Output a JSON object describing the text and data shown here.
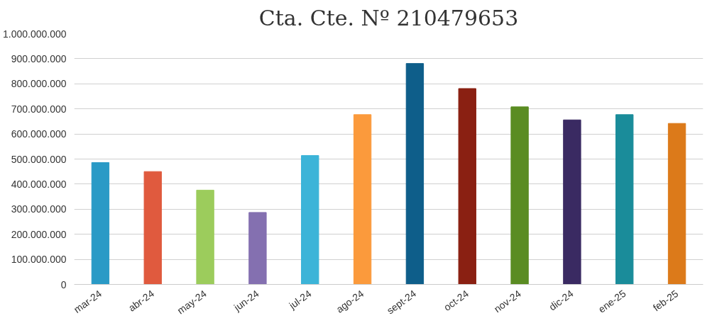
{
  "chart_data": {
    "type": "bar",
    "title": "Cta. Cte. Nº 210479653",
    "categories": [
      "mar-24",
      "abr-24",
      "may-24",
      "jun-24",
      "jul-24",
      "ago-24",
      "sept-24",
      "oct-24",
      "nov-24",
      "dic-24",
      "ene-25",
      "feb-25"
    ],
    "values": [
      486000000,
      450000000,
      376000000,
      287000000,
      514000000,
      677000000,
      881000000,
      781000000,
      708000000,
      656000000,
      677000000,
      642000000
    ],
    "colors": [
      "#2a9ac6",
      "#e05a3e",
      "#9ccc5c",
      "#8470b0",
      "#3cb4d8",
      "#fb9a3c",
      "#0e5e8a",
      "#8a2012",
      "#5a8c22",
      "#3a2a62",
      "#1a8c9a",
      "#dc7a1a"
    ],
    "ylim": [
      0,
      1000000000
    ],
    "yticks": [
      {
        "value": 0,
        "label": "0"
      },
      {
        "value": 100000000,
        "label": "100.000.000"
      },
      {
        "value": 200000000,
        "label": "200.000.000"
      },
      {
        "value": 300000000,
        "label": "300.000.000"
      },
      {
        "value": 400000000,
        "label": "400.000.000"
      },
      {
        "value": 500000000,
        "label": "500.000.000"
      },
      {
        "value": 600000000,
        "label": "600.000.000"
      },
      {
        "value": 700000000,
        "label": "700.000.000"
      },
      {
        "value": 800000000,
        "label": "800.000.000"
      },
      {
        "value": 900000000,
        "label": "900.000.000"
      },
      {
        "value": 1000000000,
        "label": "1.000.000.000"
      }
    ],
    "grid": "y"
  }
}
